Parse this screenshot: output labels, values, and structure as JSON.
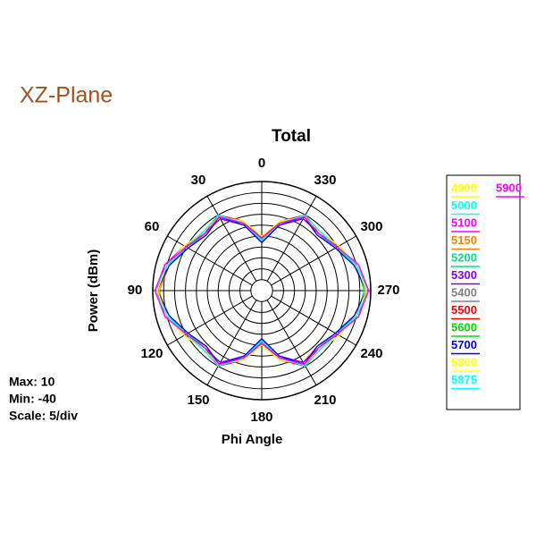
{
  "page_title": "XZ-Plane",
  "info": [
    "Max: 10",
    "Min: -40",
    "Scale: 5/div"
  ],
  "chart_data": {
    "type": "polar",
    "title": "Total",
    "rlabel": "Power  (dBm)",
    "xlabel": "Phi Angle",
    "direction": "counterclockwise",
    "zero": "top",
    "x": [
      0,
      15,
      30,
      45,
      60,
      75,
      90,
      105,
      120,
      135,
      150,
      165,
      180,
      195,
      210,
      225,
      240,
      255,
      270,
      285,
      300,
      315,
      330,
      345
    ],
    "rlim": [
      -40,
      10
    ],
    "rticks": [
      -40,
      -35,
      -30,
      -25,
      -20,
      -15,
      -10,
      -5,
      0,
      5,
      10
    ],
    "xticks": [
      0,
      30,
      60,
      90,
      120,
      150,
      180,
      210,
      240,
      270,
      300,
      330
    ],
    "grid": true,
    "legend": "right",
    "series": [
      {
        "name": "4900",
        "color": "#ffff00",
        "values": [
          -15,
          -8,
          -2,
          -3,
          0,
          5,
          8,
          5,
          0,
          -3,
          -1,
          -8,
          -16,
          -8,
          -1,
          -3,
          0,
          5,
          8,
          5,
          0,
          -3,
          -2,
          -8
        ]
      },
      {
        "name": "5000",
        "color": "#00ffff",
        "values": [
          -17,
          -7,
          -1,
          -2,
          0,
          5,
          8,
          4,
          0,
          -3,
          -1,
          -7,
          -17,
          -8,
          -1,
          -2,
          1,
          5,
          8,
          5,
          0,
          -2,
          -1,
          -7
        ]
      },
      {
        "name": "5100",
        "color": "#ff00ff",
        "values": [
          -18,
          -8,
          0,
          -3,
          1,
          6,
          8,
          5,
          1,
          -2,
          0,
          -8,
          -18,
          -9,
          0,
          -3,
          0,
          6,
          9,
          5,
          1,
          -3,
          0,
          -8
        ]
      },
      {
        "name": "5150",
        "color": "#ff8000",
        "values": [
          -17,
          -9,
          -1,
          -4,
          0,
          4,
          7,
          5,
          0,
          -4,
          -1,
          -9,
          -17,
          -8,
          -2,
          -4,
          0,
          4,
          8,
          4,
          0,
          -4,
          -1,
          -9
        ]
      },
      {
        "name": "5200",
        "color": "#00e080",
        "values": [
          -16,
          -8,
          -1,
          -3,
          -1,
          5,
          8,
          5,
          -1,
          -3,
          -2,
          -8,
          -16,
          -7,
          -1,
          -3,
          -1,
          5,
          7,
          5,
          -1,
          -3,
          -1,
          -8
        ]
      },
      {
        "name": "5300",
        "color": "#8000ff",
        "values": [
          -18,
          -9,
          -2,
          -3,
          0,
          5,
          9,
          5,
          0,
          -3,
          -2,
          -9,
          -17,
          -9,
          -2,
          -3,
          0,
          5,
          9,
          6,
          0,
          -3,
          -2,
          -9
        ]
      },
      {
        "name": "5400",
        "color": "#808080",
        "values": [
          -17,
          -8,
          -1,
          -2,
          1,
          5,
          8,
          5,
          1,
          -2,
          -1,
          -8,
          -17,
          -8,
          -1,
          -2,
          1,
          5,
          8,
          5,
          1,
          -2,
          -1,
          -8
        ]
      },
      {
        "name": "5500",
        "color": "#ff0000",
        "values": [
          -16,
          -7,
          0,
          -3,
          0,
          6,
          8,
          6,
          0,
          -3,
          0,
          -7,
          -16,
          -7,
          0,
          -3,
          0,
          6,
          8,
          5,
          0,
          -3,
          0,
          -7
        ]
      },
      {
        "name": "5600",
        "color": "#00e000",
        "values": [
          -17,
          -8,
          -1,
          -3,
          0,
          5,
          8,
          5,
          0,
          -3,
          -1,
          -8,
          -18,
          -8,
          -1,
          -3,
          0,
          5,
          8,
          5,
          0,
          -3,
          -1,
          -8
        ]
      },
      {
        "name": "5700",
        "color": "#0000ff",
        "values": [
          -18,
          -9,
          -1,
          -4,
          -1,
          4,
          8,
          4,
          -1,
          -4,
          -1,
          -9,
          -18,
          -9,
          -1,
          -4,
          -1,
          4,
          8,
          4,
          -1,
          -4,
          -1,
          -9
        ]
      },
      {
        "name": "5800",
        "color": "#ffff00",
        "values": [
          -15,
          -7,
          -1,
          -2,
          1,
          5,
          8,
          5,
          1,
          -2,
          -1,
          -7,
          -15,
          -7,
          -1,
          -2,
          1,
          5,
          8,
          5,
          1,
          -2,
          -1,
          -7
        ]
      },
      {
        "name": "5875",
        "color": "#00ffff",
        "values": [
          -17,
          -8,
          0,
          -2,
          0,
          5,
          9,
          5,
          0,
          -2,
          0,
          -8,
          -17,
          -8,
          0,
          -2,
          0,
          5,
          9,
          5,
          0,
          -2,
          0,
          -8
        ]
      },
      {
        "name": "5900",
        "color": "#ff00ff",
        "values": [
          -16,
          -8,
          -1,
          -3,
          0,
          6,
          9,
          6,
          0,
          -3,
          -1,
          -8,
          -16,
          -8,
          -1,
          -3,
          0,
          6,
          9,
          6,
          0,
          -3,
          -1,
          -8
        ]
      }
    ]
  }
}
